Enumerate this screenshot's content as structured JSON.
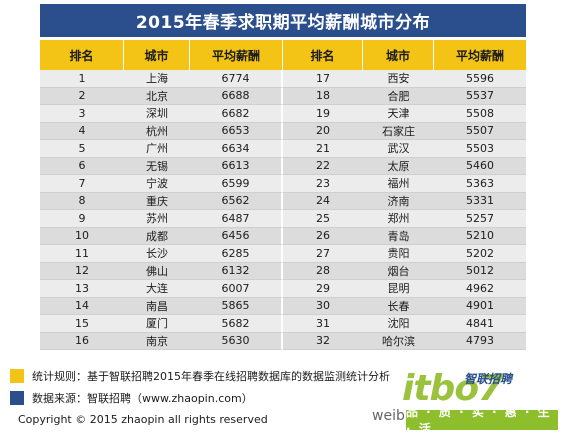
{
  "title": "2015年春季求职期平均薪酬城市分布",
  "headers": [
    "排名",
    "城市",
    "平均薪酬"
  ],
  "rows_left": [
    {
      "rank": "1",
      "city": "上海",
      "salary": "6774"
    },
    {
      "rank": "2",
      "city": "北京",
      "salary": "6688"
    },
    {
      "rank": "3",
      "city": "深圳",
      "salary": "6682"
    },
    {
      "rank": "4",
      "city": "杭州",
      "salary": "6653"
    },
    {
      "rank": "5",
      "city": "广州",
      "salary": "6634"
    },
    {
      "rank": "6",
      "city": "无锡",
      "salary": "6613"
    },
    {
      "rank": "7",
      "city": "宁波",
      "salary": "6599"
    },
    {
      "rank": "8",
      "city": "重庆",
      "salary": "6562"
    },
    {
      "rank": "9",
      "city": "苏州",
      "salary": "6487"
    },
    {
      "rank": "10",
      "city": "成都",
      "salary": "6456"
    },
    {
      "rank": "11",
      "city": "长沙",
      "salary": "6285"
    },
    {
      "rank": "12",
      "city": "佛山",
      "salary": "6132"
    },
    {
      "rank": "13",
      "city": "大连",
      "salary": "6007"
    },
    {
      "rank": "14",
      "city": "南昌",
      "salary": "5865"
    },
    {
      "rank": "15",
      "city": "厦门",
      "salary": "5682"
    },
    {
      "rank": "16",
      "city": "南京",
      "salary": "5630"
    }
  ],
  "rows_right": [
    {
      "rank": "17",
      "city": "西安",
      "salary": "5596"
    },
    {
      "rank": "18",
      "city": "合肥",
      "salary": "5537"
    },
    {
      "rank": "19",
      "city": "天津",
      "salary": "5508"
    },
    {
      "rank": "20",
      "city": "石家庄",
      "salary": "5507"
    },
    {
      "rank": "21",
      "city": "武汉",
      "salary": "5503"
    },
    {
      "rank": "22",
      "city": "太原",
      "salary": "5460"
    },
    {
      "rank": "23",
      "city": "福州",
      "salary": "5363"
    },
    {
      "rank": "24",
      "city": "济南",
      "salary": "5331"
    },
    {
      "rank": "25",
      "city": "郑州",
      "salary": "5257"
    },
    {
      "rank": "26",
      "city": "青岛",
      "salary": "5210"
    },
    {
      "rank": "27",
      "city": "贵阳",
      "salary": "5202"
    },
    {
      "rank": "28",
      "city": "烟台",
      "salary": "5012"
    },
    {
      "rank": "29",
      "city": "昆明",
      "salary": "4962"
    },
    {
      "rank": "30",
      "city": "长春",
      "salary": "4901"
    },
    {
      "rank": "31",
      "city": "沈阳",
      "salary": "4841"
    },
    {
      "rank": "32",
      "city": "哈尔滨",
      "salary": "4793"
    }
  ],
  "notes": [
    {
      "text": "统计规则：基于智联招聘2015年春季在线招聘数据库的数据监测统计分析",
      "color": "#f3c316"
    },
    {
      "text": "数据来源：智联招聘（www.zhaopin.com）",
      "color": "#2b4f8c"
    }
  ],
  "copyright": "Copyright  ©  2015 zhaopin all rights reserved",
  "watermark": {
    "weibo_text": "weib",
    "logo_mark": "itbo7",
    "logo_sub": "智联招聘",
    "slogan": "品 · 质 · 实 · 惠 · 生 · 活"
  },
  "colors": {
    "title_bg": "#2b4f8c",
    "header_bg": "#f3c316",
    "row_odd": "#ececec",
    "row_even": "#dcdcdc"
  }
}
